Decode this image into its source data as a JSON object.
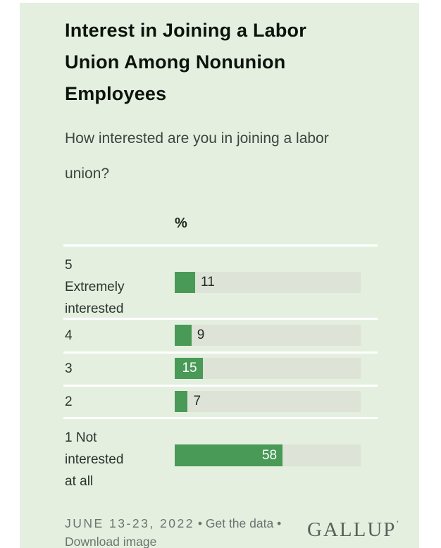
{
  "header": {
    "title_lines": [
      "Interest in Joining a Labor",
      "Union Among Nonunion",
      "Employees"
    ],
    "subtitle_lines": [
      "How interested are you in joining a labor",
      "union?"
    ]
  },
  "chart_data": {
    "type": "bar",
    "orientation": "horizontal",
    "title": "Interest in Joining a Labor Union Among Nonunion Employees",
    "subtitle": "How interested are you in joining a labor union?",
    "value_axis_header": "%",
    "categories": [
      "5 Extremely interested",
      "4",
      "3",
      "2",
      "1 Not interested at all"
    ],
    "values": [
      11,
      9,
      15,
      7,
      58
    ],
    "xlim": [
      0,
      100
    ],
    "grid": false,
    "legend": "none",
    "bar_color": "#489a56",
    "track_color": "#dde3d7"
  },
  "rows": [
    {
      "label_lines": [
        "5",
        "Extremely",
        "interested"
      ],
      "value": "11",
      "value_position": "outside"
    },
    {
      "label_lines": [
        "4"
      ],
      "value": "9",
      "value_position": "outside"
    },
    {
      "label_lines": [
        "3"
      ],
      "value": "15",
      "value_position": "inside"
    },
    {
      "label_lines": [
        "2"
      ],
      "value": "7",
      "value_position": "outside"
    },
    {
      "label_lines": [
        "1 Not",
        "interested",
        "at all"
      ],
      "value": "58",
      "value_position": "inside"
    }
  ],
  "footer": {
    "date": "JUNE 13-23, 2022",
    "bullet1": "•",
    "get_data_label": "Get the data",
    "bullet2": "•",
    "download_label": "Download image",
    "logo_text": "GALLUP",
    "logo_trademark": "’"
  },
  "colors": {
    "panel_background": "#e4efe0",
    "page_margin": "#ffffff",
    "bar_green": "#489a56",
    "bar_track": "#dde3d7",
    "separator": "#ffffff",
    "title_text": "#0d120d",
    "body_text": "#2b342d",
    "footer_text": "#6b746e"
  }
}
